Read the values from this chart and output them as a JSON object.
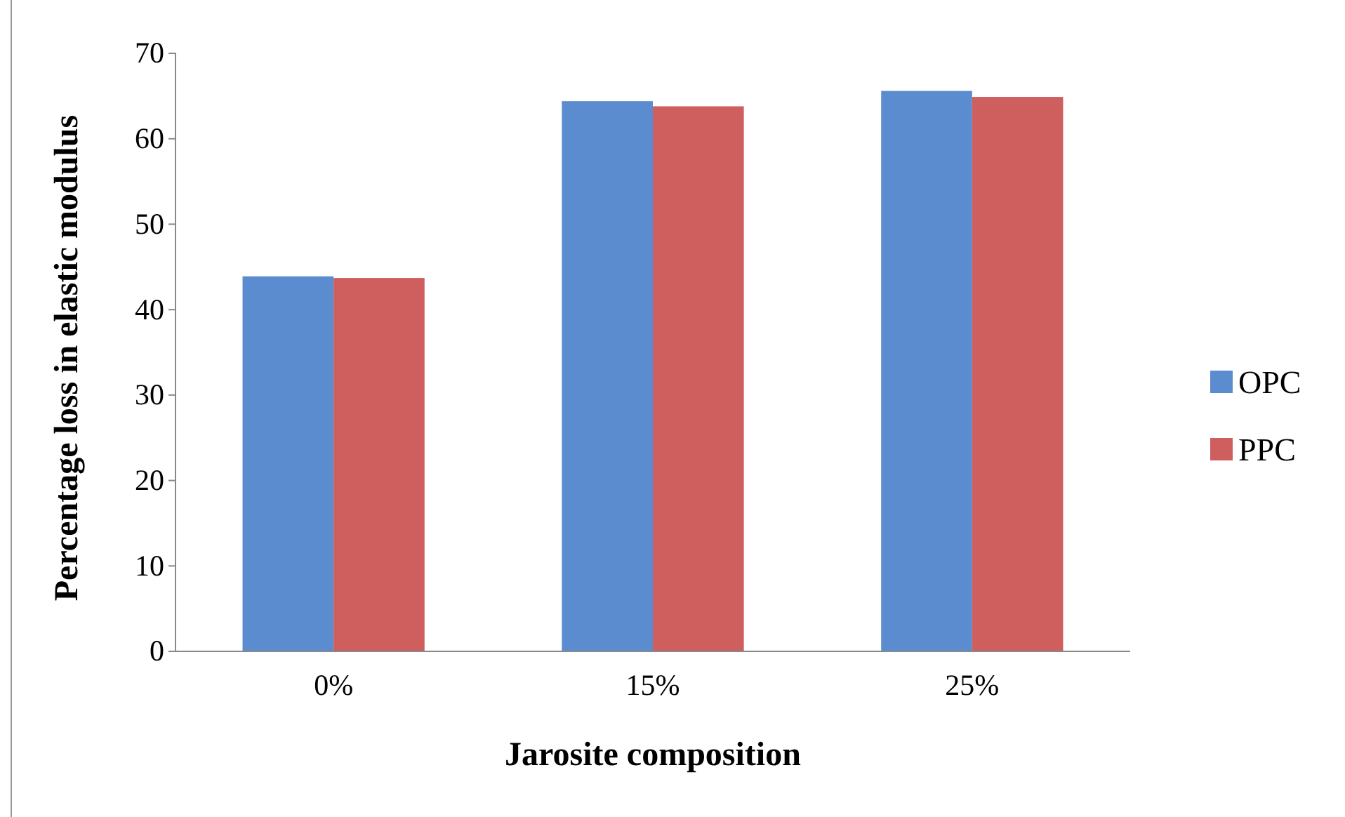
{
  "chart_data": {
    "type": "bar",
    "xlabel": "Jarosite composition",
    "ylabel": "Percentage loss in elastic modulus",
    "categories": [
      "0%",
      "15%",
      "25%"
    ],
    "series": [
      {
        "name": "OPC",
        "color": "#5a8ccf",
        "values": [
          43.9,
          64.4,
          65.6
        ]
      },
      {
        "name": "PPC",
        "color": "#cf5f5f",
        "values": [
          43.7,
          63.8,
          64.9
        ]
      }
    ],
    "ylim": [
      0,
      70
    ],
    "yticks": [
      0,
      10,
      20,
      30,
      40,
      50,
      60,
      70
    ],
    "grid": false,
    "legend": "right"
  }
}
